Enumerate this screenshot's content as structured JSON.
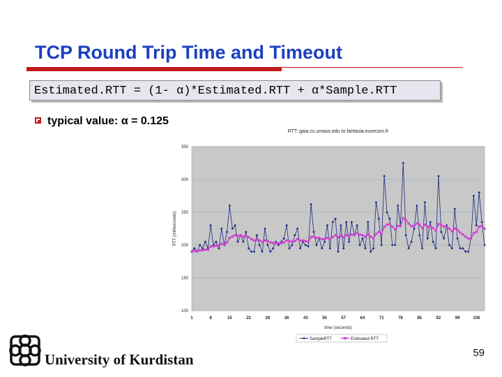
{
  "slide": {
    "title": "TCP Round Trip Time and Timeout",
    "formula": "Estimated.RTT = (1- α)*Estimated.RTT + α*Sample.RTT",
    "bullet": "typical value: α = 0.125",
    "footer": "University of Kurdistan",
    "page_number": "59"
  },
  "colors": {
    "title": "#1a3fbf",
    "accent_red": "#c0191b",
    "sample_series": "#1a2a80",
    "estimated_series": "#d040d0",
    "plot_bg": "#c8c8c8"
  },
  "chart_data": {
    "type": "line",
    "title": "RTT: gaia.cs.umass.edu to fantasia.eurecom.fr",
    "xlabel": "time (seconds)",
    "ylabel": "RTT (milliseconds)",
    "ylim": [
      100,
      350
    ],
    "yticks": [
      100,
      150,
      200,
      250,
      300,
      350
    ],
    "xticks": [
      1,
      8,
      15,
      22,
      29,
      36,
      43,
      50,
      57,
      64,
      71,
      78,
      85,
      92,
      99,
      106
    ],
    "xlim": [
      1,
      109
    ],
    "grid": true,
    "legend_position": "bottom",
    "x": [
      1,
      2,
      3,
      4,
      5,
      6,
      7,
      8,
      9,
      10,
      11,
      12,
      13,
      14,
      15,
      16,
      17,
      18,
      19,
      20,
      21,
      22,
      23,
      24,
      25,
      26,
      27,
      28,
      29,
      30,
      31,
      32,
      33,
      34,
      35,
      36,
      37,
      38,
      39,
      40,
      41,
      42,
      43,
      44,
      45,
      46,
      47,
      48,
      49,
      50,
      51,
      52,
      53,
      54,
      55,
      56,
      57,
      58,
      59,
      60,
      61,
      62,
      63,
      64,
      65,
      66,
      67,
      68,
      69,
      70,
      71,
      72,
      73,
      74,
      75,
      76,
      77,
      78,
      79,
      80,
      81,
      82,
      83,
      84,
      85,
      86,
      87,
      88,
      89,
      90,
      91,
      92,
      93,
      94,
      95,
      96,
      97,
      98,
      99,
      100,
      101,
      102,
      103,
      104,
      105,
      106,
      107,
      108,
      109
    ],
    "series": [
      {
        "name": "SampleRTT",
        "values": [
          190,
          195,
          190,
          200,
          195,
          205,
          195,
          230,
          200,
          205,
          195,
          225,
          200,
          220,
          260,
          225,
          230,
          205,
          215,
          205,
          220,
          195,
          190,
          190,
          215,
          200,
          190,
          225,
          200,
          190,
          195,
          205,
          200,
          205,
          210,
          230,
          195,
          200,
          215,
          225,
          195,
          205,
          200,
          198,
          262,
          220,
          200,
          210,
          195,
          205,
          230,
          195,
          235,
          240,
          190,
          230,
          195,
          235,
          205,
          235,
          215,
          230,
          200,
          210,
          195,
          235,
          190,
          195,
          265,
          240,
          200,
          305,
          250,
          240,
          200,
          200,
          260,
          230,
          325,
          215,
          195,
          205,
          225,
          260,
          215,
          195,
          265,
          210,
          235,
          205,
          195,
          305,
          220,
          210,
          230,
          200,
          195,
          255,
          210,
          195,
          195,
          190,
          190,
          210,
          275,
          230,
          280,
          235,
          200
        ]
      },
      {
        "name": "Estimated RTT",
        "values": [
          190,
          191,
          191,
          192,
          192,
          193,
          193,
          198,
          198,
          199,
          198,
          202,
          201,
          204,
          211,
          213,
          215,
          214,
          214,
          213,
          214,
          212,
          209,
          207,
          208,
          207,
          205,
          207,
          206,
          204,
          203,
          203,
          203,
          203,
          204,
          207,
          206,
          205,
          206,
          209,
          207,
          207,
          206,
          205,
          212,
          213,
          211,
          211,
          209,
          209,
          211,
          209,
          212,
          215,
          212,
          214,
          212,
          215,
          214,
          216,
          216,
          218,
          216,
          215,
          213,
          216,
          213,
          210,
          217,
          220,
          217,
          228,
          231,
          232,
          228,
          224,
          229,
          229,
          241,
          238,
          233,
          229,
          229,
          233,
          231,
          226,
          231,
          228,
          229,
          226,
          222,
          232,
          231,
          228,
          228,
          225,
          221,
          225,
          223,
          219,
          216,
          213,
          210,
          210,
          218,
          220,
          228,
          229,
          225
        ]
      }
    ]
  }
}
